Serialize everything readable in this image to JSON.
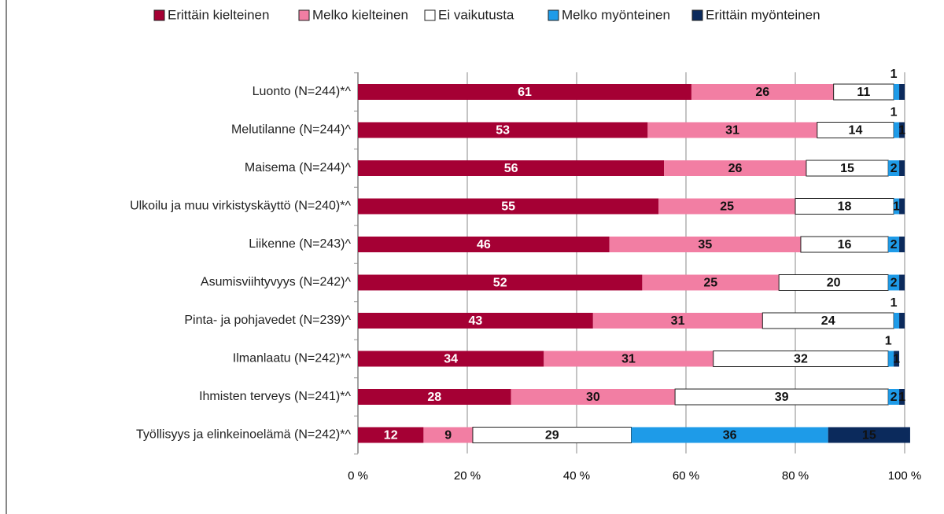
{
  "chart_data": {
    "type": "stacked-bar-100",
    "categories": [
      "Luonto (N=244)*^",
      "Melutilanne (N=244)^",
      "Maisema (N=244)^",
      "Ulkoilu ja muu virkistyskäyttö (N=240)*^",
      "Liikenne (N=243)^",
      "Asumisviihtyvyys (N=242)^",
      "Pinta- ja pohjavedet (N=239)^",
      "Ilmanlaatu (N=242)*^",
      "Ihmisten terveys (N=241)*^",
      "Työllisyys ja elinkeinoelämä (N=242)*^"
    ],
    "series": [
      {
        "name": "Erittäin kielteinen",
        "color": "#a50034",
        "values": [
          61,
          53,
          56,
          55,
          46,
          52,
          43,
          34,
          28,
          12
        ],
        "value_labels": [
          "61",
          "53",
          "56",
          "55",
          "46",
          "52",
          "43",
          "34",
          "28",
          "12"
        ]
      },
      {
        "name": "Melko kielteinen",
        "color": "#f27ea3",
        "values": [
          26,
          31,
          26,
          25,
          35,
          25,
          31,
          31,
          30,
          9
        ],
        "value_labels": [
          "26",
          "31",
          "26",
          "25",
          "35",
          "25",
          "31",
          "31",
          "30",
          "9"
        ]
      },
      {
        "name": "Ei vaikutusta",
        "color": "#ffffff",
        "values": [
          11,
          14,
          15,
          18,
          16,
          20,
          24,
          32,
          39,
          29
        ],
        "value_labels": [
          "11",
          "14",
          "15",
          "18",
          "16",
          "20",
          "24",
          "32",
          "39",
          "29"
        ]
      },
      {
        "name": "Melko myönteinen",
        "color": "#1e9be8",
        "values": [
          1,
          1,
          2,
          1,
          2,
          2,
          1,
          1,
          2,
          36
        ],
        "value_labels": [
          "1",
          "1",
          "2",
          "1",
          "2",
          "2",
          "1",
          "1",
          "2",
          "36"
        ]
      },
      {
        "name": "Erittäin myönteinen",
        "color": "#0b2a5c",
        "values": [
          1,
          1,
          1,
          1,
          1,
          1,
          1,
          1,
          1,
          15
        ],
        "value_labels": [
          null,
          "1",
          null,
          null,
          null,
          null,
          null,
          "1",
          "1",
          "15"
        ]
      }
    ],
    "xlim": [
      0,
      100
    ],
    "xticks": [
      {
        "value": 0,
        "label": "0 %"
      },
      {
        "value": 20,
        "label": "20 %"
      },
      {
        "value": 40,
        "label": "40 %"
      },
      {
        "value": 60,
        "label": "60 %"
      },
      {
        "value": 80,
        "label": "80 %"
      },
      {
        "value": 100,
        "label": "100 %"
      }
    ],
    "grid": true,
    "legend": "top"
  }
}
